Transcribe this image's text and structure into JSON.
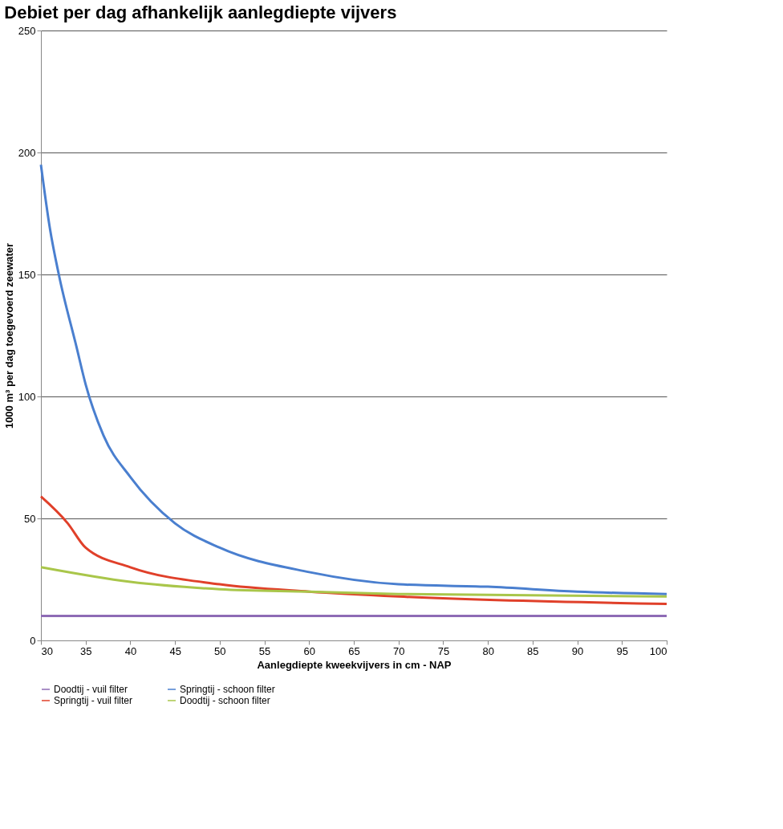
{
  "chart_data": {
    "type": "line",
    "title": "Debiet per dag afhankelijk aanlegdiepte vijvers",
    "xlabel": "Aanlegdiepte kweekvijvers in cm - NAP",
    "ylabel": "1000 m³ per dag toegevoerd zeewater",
    "xlim": [
      30,
      100
    ],
    "xticks": [
      30,
      35,
      40,
      45,
      50,
      55,
      60,
      65,
      70,
      75,
      80,
      85,
      90,
      95,
      100
    ],
    "ylim": [
      0,
      250
    ],
    "yticks": [
      0,
      50,
      100,
      150,
      200,
      250
    ],
    "grid": "y",
    "legend": "bottom",
    "marker": "none",
    "line_style": "solid",
    "series": [
      {
        "name": "Doodtij - vuil filter",
        "color": "#8e6bb5",
        "x": [
          30,
          50,
          70,
          100
        ],
        "values": [
          10,
          10,
          10,
          10
        ]
      },
      {
        "name": "Springtij - schoon filter",
        "color": "#4a7fcf",
        "x": [
          30,
          31,
          32,
          34,
          35,
          37,
          40,
          45,
          50,
          60,
          70,
          80,
          90,
          100
        ],
        "values": [
          195,
          169,
          150,
          120,
          105,
          84,
          67,
          48,
          38,
          28,
          23,
          22,
          20,
          19
        ]
      },
      {
        "name": "Springtij - vuil filter",
        "color": "#e0402a",
        "x": [
          30,
          33,
          35,
          40,
          50,
          60,
          70,
          100
        ],
        "values": [
          59,
          48,
          38,
          30,
          23,
          20,
          18,
          15
        ]
      },
      {
        "name": "Doodtij - schoon filter",
        "color": "#a9c64a",
        "x": [
          30,
          40,
          50,
          60,
          70,
          100
        ],
        "values": [
          30,
          24,
          21,
          20,
          19,
          18
        ]
      }
    ]
  }
}
